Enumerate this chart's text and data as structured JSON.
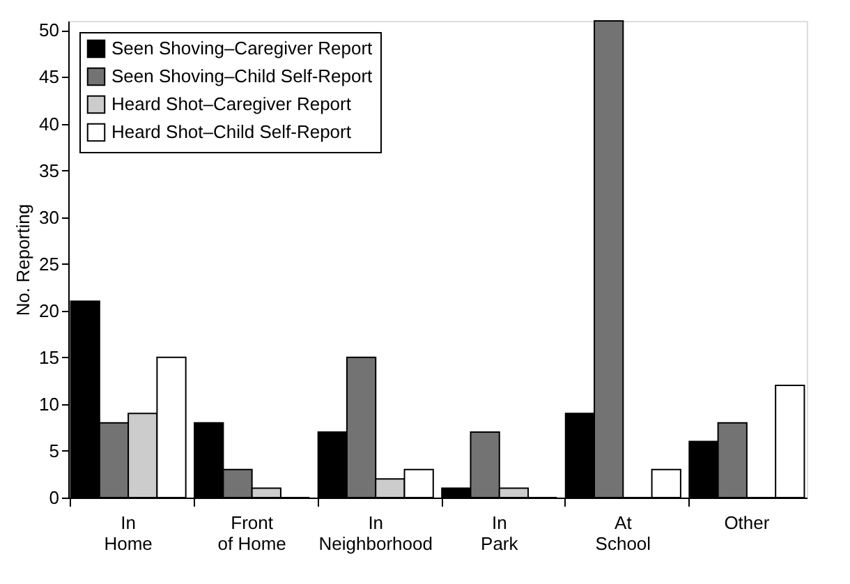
{
  "chart_data": {
    "type": "bar",
    "ylabel": "No. Reporting",
    "categories": [
      "In\nHome",
      "Front\nof Home",
      "In\nNeighborhood",
      "In\nPark",
      "At\nSchool",
      "Other"
    ],
    "series": [
      {
        "name": "Seen Shoving–Caregiver Report",
        "color": "#000000",
        "values": [
          21,
          8,
          7,
          1,
          9,
          6
        ]
      },
      {
        "name": "Seen Shoving–Child Self-Report",
        "color": "#737373",
        "values": [
          8,
          3,
          15,
          7,
          51,
          8
        ]
      },
      {
        "name": "Heard Shot–Caregiver Report",
        "color": "#cccccc",
        "values": [
          9,
          1,
          2,
          1,
          0,
          0
        ]
      },
      {
        "name": "Heard Shot–Child Self-Report",
        "color": "#ffffff",
        "values": [
          15,
          0,
          3,
          0,
          3,
          12
        ]
      }
    ],
    "ylim": [
      0,
      51
    ],
    "yticks": [
      0,
      5,
      10,
      15,
      20,
      25,
      30,
      35,
      40,
      45,
      50
    ],
    "grid": false,
    "legend": "top left"
  }
}
